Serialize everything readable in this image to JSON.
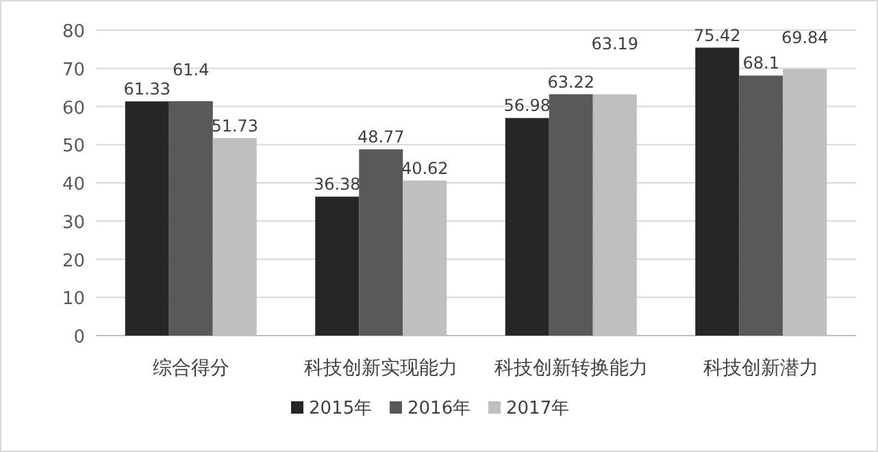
{
  "chart_data": {
    "type": "bar",
    "categories": [
      "综合得分",
      "科技创新实现能力",
      "科技创新转换能力",
      "科技创新潜力"
    ],
    "series": [
      {
        "name": "2015年",
        "color": "#262626",
        "values": [
          61.33,
          36.38,
          56.98,
          75.42
        ]
      },
      {
        "name": "2016年",
        "color": "#595959",
        "values": [
          61.4,
          48.77,
          63.22,
          68.1
        ]
      },
      {
        "name": "2017年",
        "color": "#bfbfbf",
        "values": [
          51.73,
          40.62,
          63.19,
          69.84
        ]
      }
    ],
    "ylim": [
      0,
      80
    ],
    "yticks": [
      0,
      10,
      20,
      30,
      40,
      50,
      60,
      70,
      80
    ],
    "grid": "y",
    "legend": "bottom",
    "data_labels": true
  }
}
